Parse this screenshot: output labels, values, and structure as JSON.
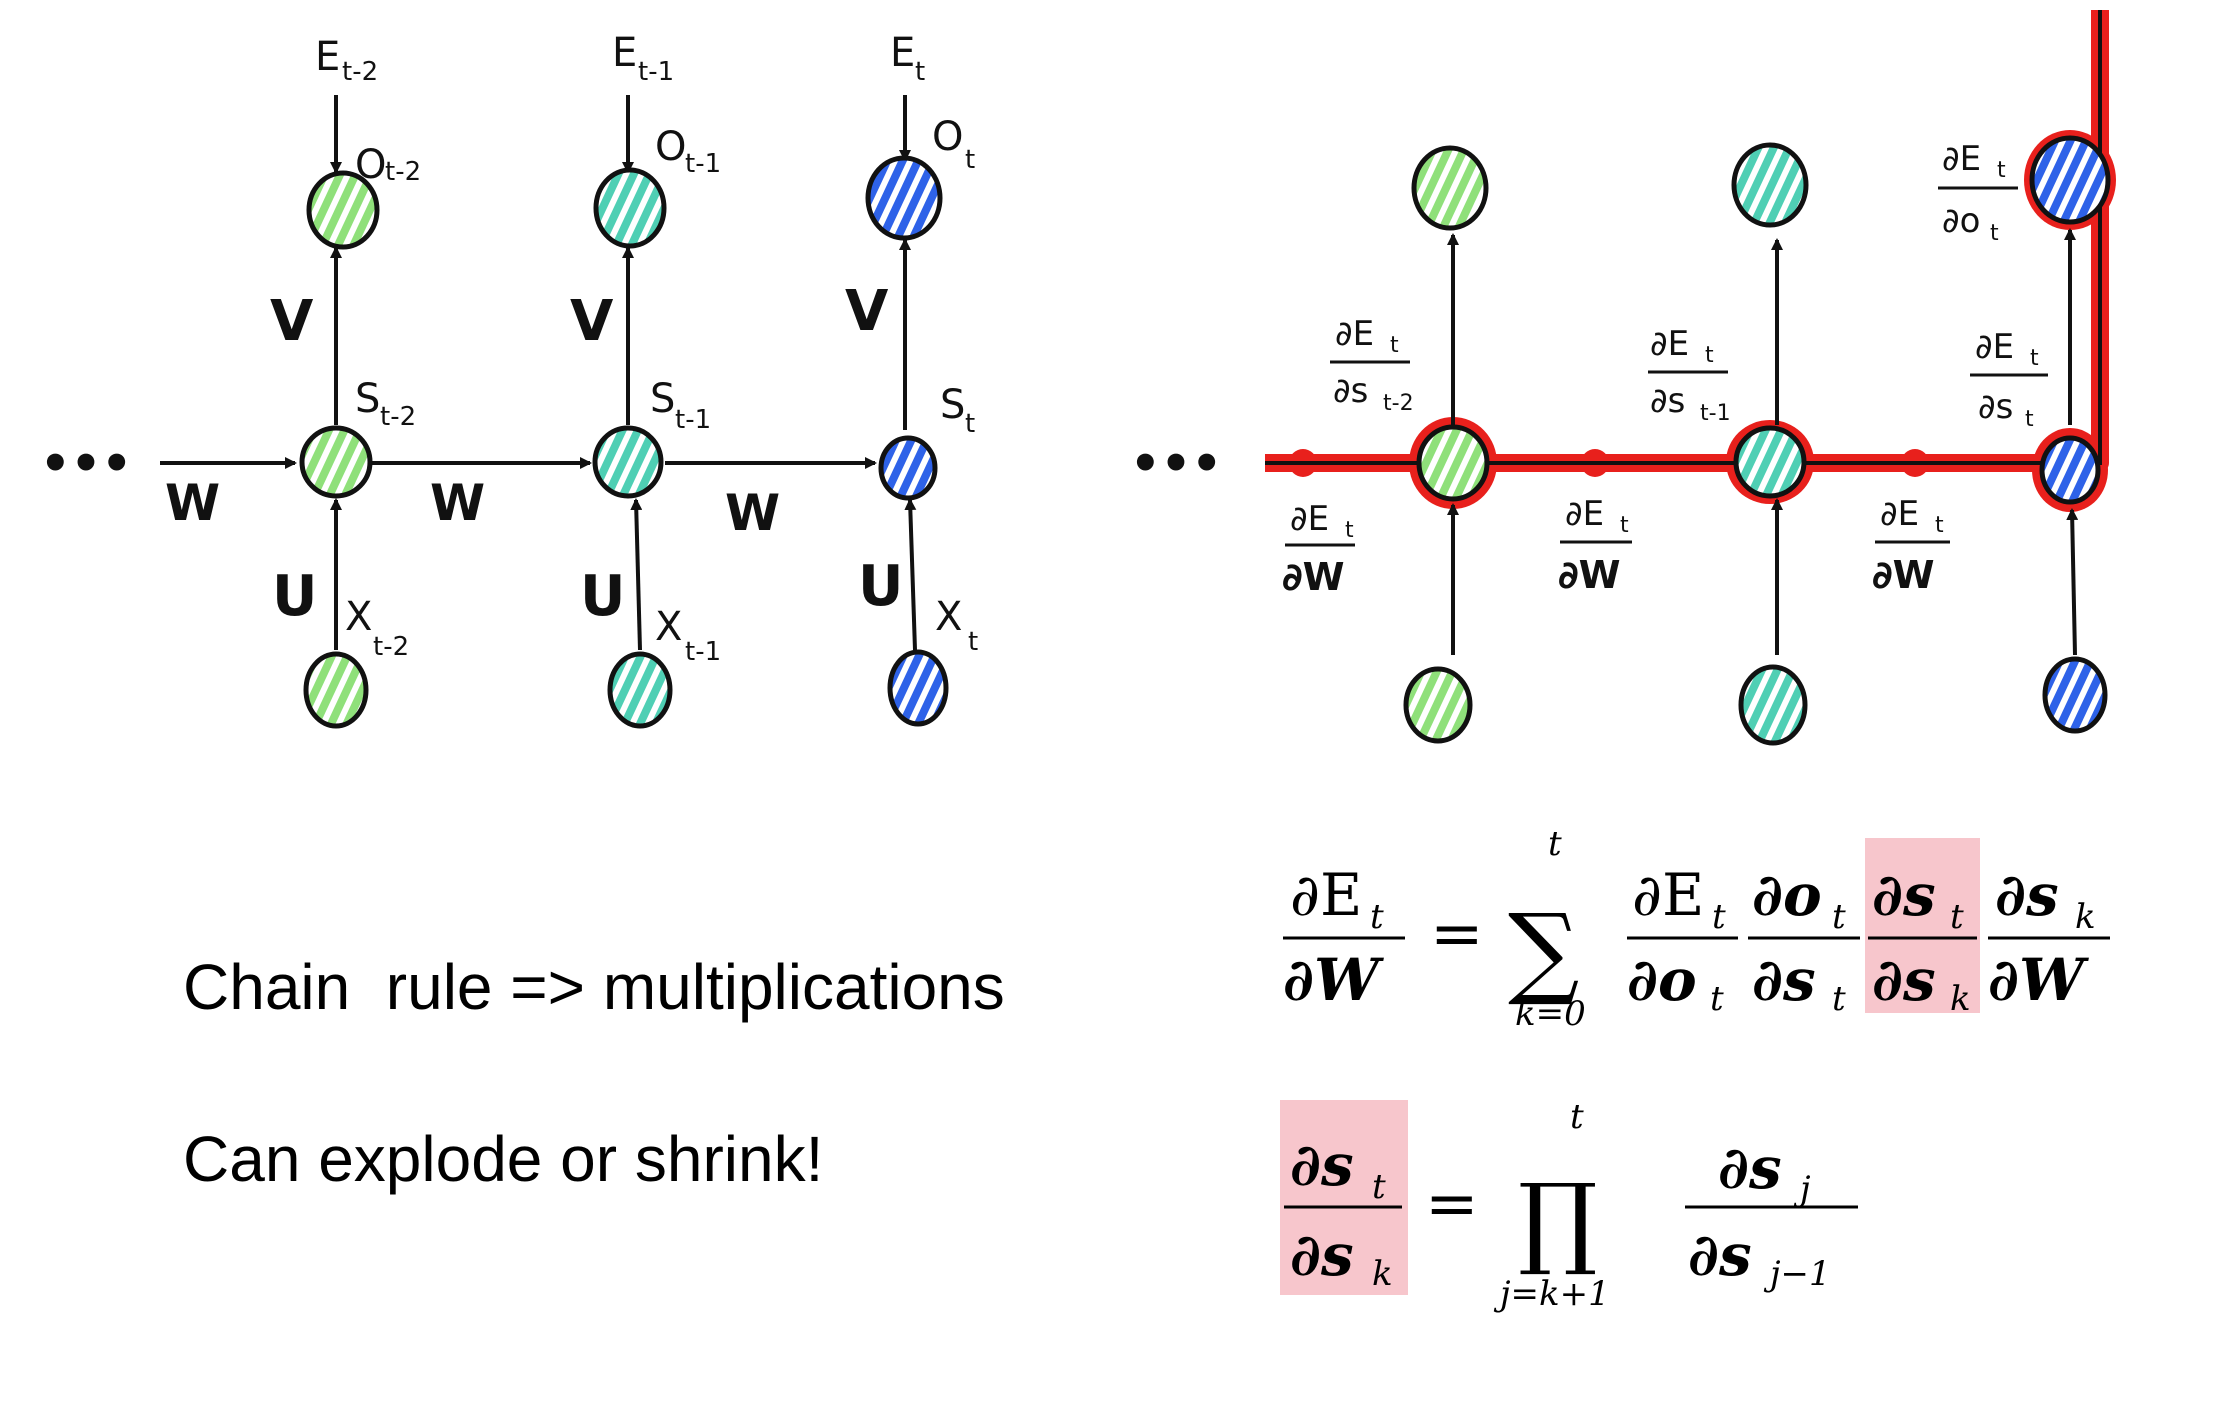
{
  "left_diagram": {
    "ellipsis": "•••",
    "columns": [
      {
        "E": "E",
        "E_sub": "t-2",
        "o": "O",
        "o_sub": "t-2",
        "s": "S",
        "s_sub": "t-2",
        "x": "X",
        "x_sub": "t-2",
        "V": "V",
        "U": "U",
        "color": "#8fe07a"
      },
      {
        "E": "E",
        "E_sub": "t-1",
        "o": "O",
        "o_sub": "t-1",
        "s": "S",
        "s_sub": "t-1",
        "x": "X",
        "x_sub": "t-1",
        "V": "V",
        "U": "U",
        "color": "#4fcfb4"
      },
      {
        "E": "E",
        "E_sub": "t",
        "o": "O",
        "o_sub": "t",
        "s": "S",
        "s_sub": "t",
        "x": "X",
        "x_sub": "t",
        "V": "V",
        "U": "U",
        "color": "#2e62e8"
      }
    ],
    "w_labels": [
      "W",
      "W",
      "W"
    ]
  },
  "right_diagram": {
    "ellipsis": "•••",
    "ds_labels": [
      {
        "num": "∂E",
        "num_sub": "t",
        "den": "∂s",
        "den_sub": "t-2"
      },
      {
        "num": "∂E",
        "num_sub": "t",
        "den": "∂s",
        "den_sub": "t-1"
      },
      {
        "num": "∂E",
        "num_sub": "t",
        "den": "∂s",
        "den_sub": "t"
      }
    ],
    "do_label": {
      "num": "∂E",
      "num_sub": "t",
      "den": "∂o",
      "den_sub": "t"
    },
    "dw_labels": [
      {
        "num": "∂E",
        "num_sub": "t",
        "den": "∂W"
      },
      {
        "num": "∂E",
        "num_sub": "t",
        "den": "∂W"
      },
      {
        "num": "∂E",
        "num_sub": "t",
        "den": "∂W"
      }
    ],
    "path_color": "#e8201c"
  },
  "captions": {
    "line1": "Chain  rule => multiplications",
    "line2": "Can explode or shrink!"
  },
  "equation1": {
    "lhs_num": "∂E",
    "lhs_num_sub": "t",
    "lhs_den": "∂W",
    "equals": "=",
    "sum": "∑",
    "sum_top": "t",
    "sum_bottom": "k=0",
    "f1_num": "∂E",
    "f1_num_sub": "t",
    "f1_den": "∂o",
    "f1_den_sub": "t",
    "f2_num": "∂o",
    "f2_num_sub": "t",
    "f2_den": "∂s",
    "f2_den_sub": "t",
    "f3_num": "∂s",
    "f3_num_sub": "t",
    "f3_den": "∂s",
    "f3_den_sub": "k",
    "f4_num": "∂s",
    "f4_num_sub": "k",
    "f4_den": "∂W"
  },
  "equation2": {
    "lhs_num": "∂s",
    "lhs_num_sub": "t",
    "lhs_den": "∂s",
    "lhs_den_sub": "k",
    "equals": "=",
    "prod": "∏",
    "prod_top": "t",
    "prod_bottom": "j=k+1",
    "f_num": "∂s",
    "f_num_sub": "j",
    "f_den": "∂s",
    "f_den_sub": "j−1"
  },
  "highlight_color": "#f7c6cc"
}
